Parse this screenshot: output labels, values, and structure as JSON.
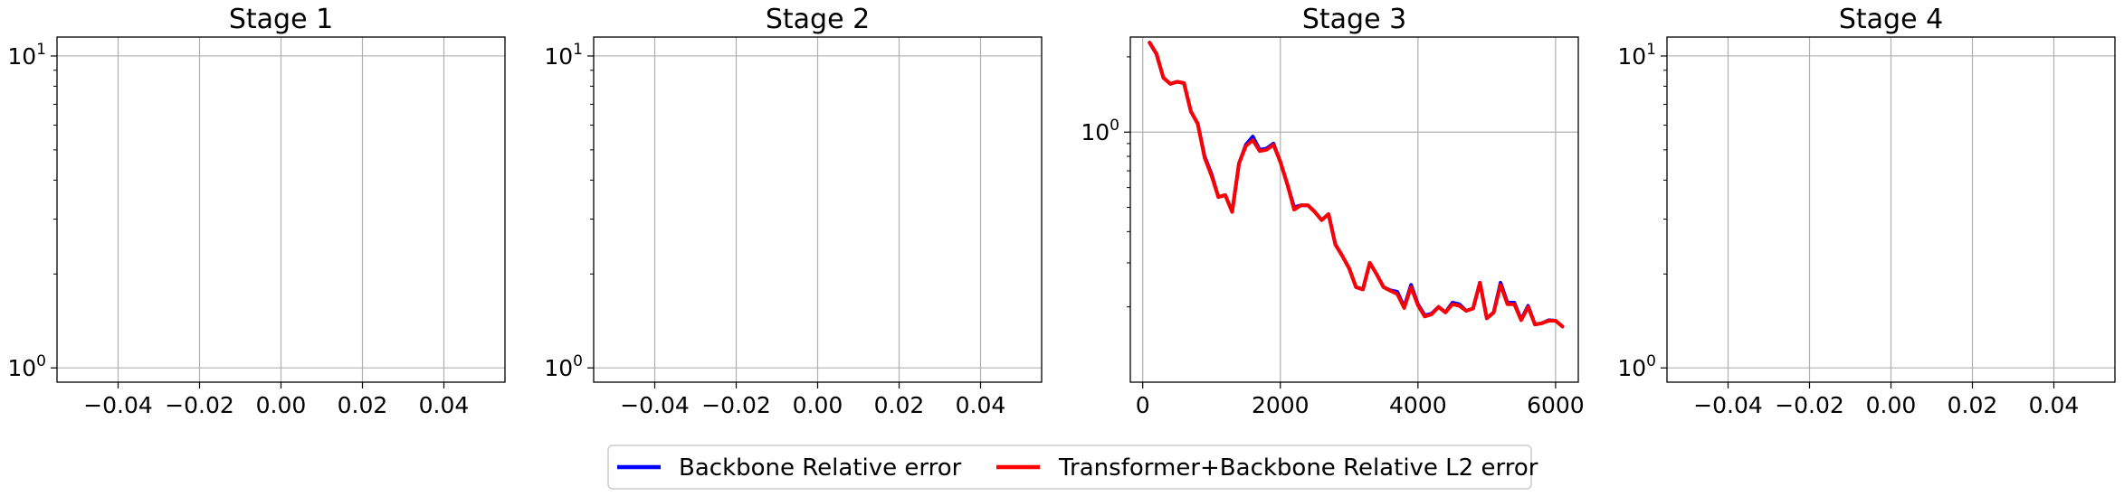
{
  "chart_data": [
    {
      "type": "line",
      "title": "Stage 1",
      "yscale": "log",
      "grid": true,
      "xlim": [
        -0.055,
        0.055
      ],
      "ylim": [
        0.9,
        11.5
      ],
      "xticks": [
        "−0.04",
        "−0.02",
        "0.00",
        "0.02",
        "0.04"
      ],
      "xtick_values": [
        -0.04,
        -0.02,
        0,
        0.02,
        0.04
      ],
      "yticks": [
        {
          "base": "10",
          "exp": "0",
          "value": 1
        },
        {
          "base": "10",
          "exp": "1",
          "value": 10
        }
      ],
      "series": []
    },
    {
      "type": "line",
      "title": "Stage 2",
      "yscale": "log",
      "grid": true,
      "xlim": [
        -0.055,
        0.055
      ],
      "ylim": [
        0.9,
        11.5
      ],
      "xticks": [
        "−0.04",
        "−0.02",
        "0.00",
        "0.02",
        "0.04"
      ],
      "xtick_values": [
        -0.04,
        -0.02,
        0,
        0.02,
        0.04
      ],
      "yticks": [
        {
          "base": "10",
          "exp": "0",
          "value": 1
        },
        {
          "base": "10",
          "exp": "1",
          "value": 10
        }
      ],
      "series": []
    },
    {
      "type": "line",
      "title": "Stage 3",
      "yscale": "log",
      "grid": true,
      "xlim": [
        -180,
        6330
      ],
      "ylim": [
        0.1,
        2.4
      ],
      "xticks": [
        "0",
        "2000",
        "4000",
        "6000"
      ],
      "xtick_values": [
        0,
        2000,
        4000,
        6000
      ],
      "yticks": [
        {
          "base": "10",
          "exp": "0",
          "value": 1
        }
      ],
      "series": [
        {
          "name": "Backbone Relative error",
          "color": "#0000ff",
          "x": [
            100,
            200,
            300,
            400,
            500,
            600,
            700,
            800,
            900,
            1000,
            1100,
            1200,
            1300,
            1400,
            1500,
            1600,
            1700,
            1800,
            1900,
            2000,
            2100,
            2200,
            2300,
            2400,
            2500,
            2600,
            2700,
            2800,
            2900,
            3000,
            3100,
            3200,
            3300,
            3400,
            3500,
            3600,
            3700,
            3800,
            3900,
            4000,
            4100,
            4200,
            4300,
            4400,
            4500,
            4600,
            4700,
            4800,
            4900,
            5000,
            5100,
            5200,
            5300,
            5400,
            5500,
            5600,
            5700,
            5800,
            5900,
            6000,
            6100
          ],
          "y": [
            2.28,
            2.05,
            1.65,
            1.56,
            1.59,
            1.57,
            1.21,
            1.08,
            0.8,
            0.68,
            0.55,
            0.56,
            0.48,
            0.75,
            0.89,
            0.96,
            0.85,
            0.86,
            0.9,
            0.76,
            0.62,
            0.5,
            0.51,
            0.51,
            0.48,
            0.445,
            0.47,
            0.355,
            0.32,
            0.285,
            0.24,
            0.235,
            0.3,
            0.27,
            0.24,
            0.233,
            0.23,
            0.2,
            0.245,
            0.205,
            0.185,
            0.188,
            0.2,
            0.19,
            0.208,
            0.205,
            0.193,
            0.197,
            0.25,
            0.18,
            0.19,
            0.25,
            0.208,
            0.208,
            0.178,
            0.202,
            0.17,
            0.172,
            0.177,
            0.176,
            0.167
          ]
        },
        {
          "name": "Transformer+Backbone Relative L2 error",
          "color": "#ff0000",
          "x": [
            100,
            200,
            300,
            400,
            500,
            600,
            700,
            800,
            900,
            1000,
            1100,
            1200,
            1300,
            1400,
            1500,
            1600,
            1700,
            1800,
            1900,
            2000,
            2100,
            2200,
            2300,
            2400,
            2500,
            2600,
            2700,
            2800,
            2900,
            3000,
            3100,
            3200,
            3300,
            3400,
            3500,
            3600,
            3700,
            3800,
            3900,
            4000,
            4100,
            4200,
            4300,
            4400,
            4500,
            4600,
            4700,
            4800,
            4900,
            5000,
            5100,
            5200,
            5300,
            5400,
            5500,
            5600,
            5700,
            5800,
            5900,
            6000,
            6100
          ],
          "y": [
            2.28,
            2.06,
            1.65,
            1.56,
            1.59,
            1.57,
            1.21,
            1.08,
            0.79,
            0.67,
            0.55,
            0.56,
            0.48,
            0.75,
            0.88,
            0.93,
            0.84,
            0.85,
            0.89,
            0.76,
            0.62,
            0.49,
            0.51,
            0.51,
            0.48,
            0.445,
            0.47,
            0.355,
            0.32,
            0.285,
            0.24,
            0.235,
            0.3,
            0.27,
            0.24,
            0.232,
            0.225,
            0.198,
            0.24,
            0.203,
            0.183,
            0.187,
            0.2,
            0.19,
            0.205,
            0.202,
            0.193,
            0.197,
            0.25,
            0.18,
            0.19,
            0.245,
            0.205,
            0.205,
            0.177,
            0.2,
            0.17,
            0.172,
            0.176,
            0.176,
            0.167
          ]
        }
      ]
    },
    {
      "type": "line",
      "title": "Stage 4",
      "yscale": "log",
      "grid": true,
      "xlim": [
        -0.055,
        0.055
      ],
      "ylim": [
        0.9,
        11.5
      ],
      "xticks": [
        "−0.04",
        "−0.02",
        "0.00",
        "0.02",
        "0.04"
      ],
      "xtick_values": [
        -0.04,
        -0.02,
        0,
        0.02,
        0.04
      ],
      "yticks": [
        {
          "base": "10",
          "exp": "0",
          "value": 1
        },
        {
          "base": "10",
          "exp": "1",
          "value": 10
        }
      ],
      "series": []
    }
  ],
  "legend": {
    "placement": "bottom-center",
    "entries": [
      {
        "label": "Backbone Relative error",
        "color": "#0000ff"
      },
      {
        "label": "Transformer+Backbone Relative L2 error",
        "color": "#ff0000"
      }
    ]
  }
}
